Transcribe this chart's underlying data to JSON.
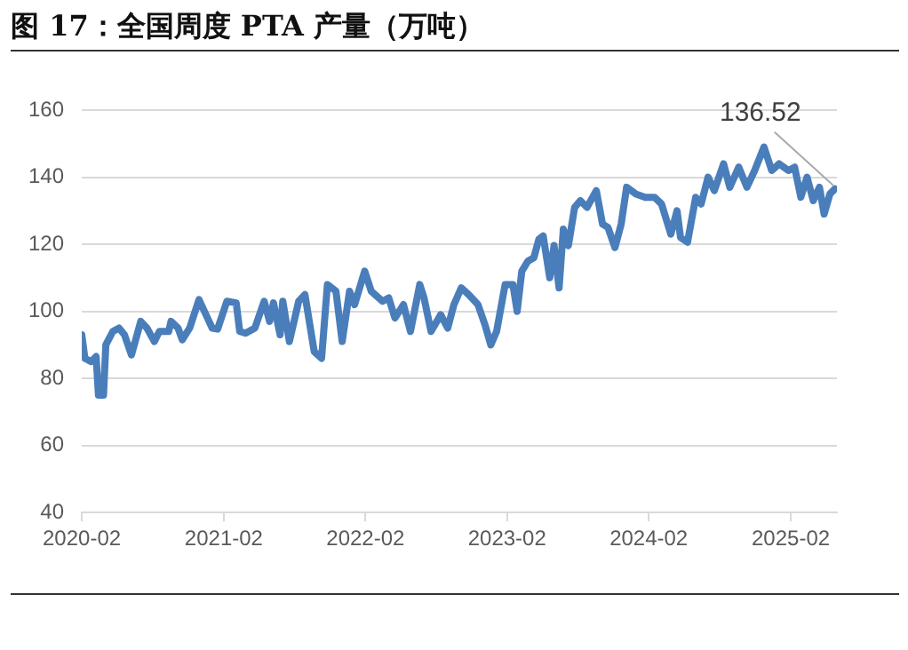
{
  "chart_data": {
    "type": "line",
    "title": "图 17：全国周度 PTA 产量（万吨）",
    "x": [
      "2020-02-01",
      "2020-02-09",
      "2020-02-25",
      "2020-03-09",
      "2020-03-15",
      "2020-03-28",
      "2020-04-03",
      "2020-04-21",
      "2020-05-07",
      "2020-05-21",
      "2020-06-08",
      "2020-07-02",
      "2020-07-18",
      "2020-08-06",
      "2020-08-19",
      "2020-09-12",
      "2020-09-18",
      "2020-10-06",
      "2020-10-17",
      "2020-11-05",
      "2020-11-29",
      "2020-12-17",
      "2021-01-02",
      "2021-01-16",
      "2021-02-09",
      "2021-03-05",
      "2021-03-14",
      "2021-03-29",
      "2021-04-22",
      "2021-05-16",
      "2021-05-30",
      "2021-06-09",
      "2021-06-26",
      "2021-07-03",
      "2021-07-20",
      "2021-08-13",
      "2021-08-29",
      "2021-09-22",
      "2021-10-11",
      "2021-10-26",
      "2021-11-17",
      "2021-12-03",
      "2021-12-22",
      "2022-01-04",
      "2022-01-30",
      "2022-02-16",
      "2022-03-17",
      "2022-04-02",
      "2022-04-18",
      "2022-05-10",
      "2022-05-28",
      "2022-06-21",
      "2022-07-02",
      "2022-07-20",
      "2022-08-14",
      "2022-09-01",
      "2022-09-17",
      "2022-10-06",
      "2022-10-25",
      "2022-11-18",
      "2022-12-06",
      "2022-12-21",
      "2023-01-05",
      "2023-01-27",
      "2023-02-16",
      "2023-02-27",
      "2023-03-11",
      "2023-03-27",
      "2023-04-11",
      "2023-04-24",
      "2023-05-05",
      "2023-05-22",
      "2023-06-02",
      "2023-06-15",
      "2023-06-26",
      "2023-07-09",
      "2023-07-25",
      "2023-08-09",
      "2023-08-26",
      "2023-09-19",
      "2023-10-05",
      "2023-10-19",
      "2023-11-06",
      "2023-11-22",
      "2023-12-06",
      "2023-12-30",
      "2024-01-23",
      "2024-02-16",
      "2024-03-05",
      "2024-03-29",
      "2024-04-14",
      "2024-04-23",
      "2024-05-11",
      "2024-06-01",
      "2024-06-15",
      "2024-07-03",
      "2024-07-19",
      "2024-08-12",
      "2024-08-28",
      "2024-09-20",
      "2024-10-11",
      "2024-10-31",
      "2024-11-24",
      "2024-12-14",
      "2025-01-02",
      "2025-01-26",
      "2025-02-11",
      "2025-02-27",
      "2025-03-15",
      "2025-03-31",
      "2025-04-16",
      "2025-04-28",
      "2025-05-13",
      "2025-05-26"
    ],
    "series": [
      {
        "color": "#4a7ebb",
        "values": [
          93,
          86,
          85,
          86.5,
          75,
          75,
          90,
          94,
          95,
          93,
          87,
          97,
          95,
          91,
          94,
          94,
          97,
          95,
          91.5,
          95,
          103.5,
          99,
          95,
          94.7,
          103,
          102.5,
          94,
          93.5,
          95,
          103,
          97,
          102.5,
          93,
          103,
          91,
          103,
          105,
          88,
          86,
          108,
          106,
          91,
          106,
          102,
          112,
          106,
          103,
          104,
          98,
          102,
          94,
          108,
          104,
          94,
          99,
          95,
          102,
          107,
          105,
          102,
          96,
          90,
          94,
          108,
          108,
          100,
          112,
          115,
          116,
          121.5,
          122.5,
          110,
          119.6,
          107,
          124.5,
          119.6,
          131,
          133,
          131,
          136,
          126,
          125,
          119,
          126,
          137,
          135,
          134,
          134,
          132,
          123,
          130,
          122,
          120.6,
          134,
          132,
          140,
          136,
          144,
          137,
          143,
          137,
          142,
          149,
          142,
          144,
          142,
          143,
          134,
          140,
          133,
          137,
          129,
          135,
          136.52
        ]
      }
    ],
    "xlim": [
      "2020-02-01",
      "2025-05-31"
    ],
    "xticks": [
      "2020-02",
      "2021-02",
      "2022-02",
      "2023-02",
      "2024-02",
      "2025-02"
    ],
    "ylim": [
      40,
      160
    ],
    "yticks": [
      40,
      60,
      80,
      100,
      120,
      140,
      160
    ],
    "grid": "y",
    "marker": "none",
    "line_style": "solid",
    "annotations": [
      {
        "text": "136.52",
        "x": "2025-05-26",
        "y": 136.52
      }
    ]
  }
}
